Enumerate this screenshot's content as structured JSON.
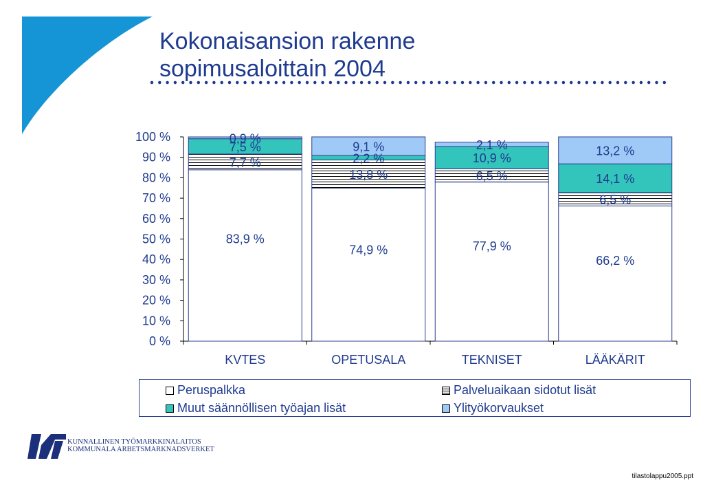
{
  "slide": {
    "title_line1": "Kokonaisansion rakenne",
    "title_line2": "sopimusaloittain 2004",
    "org_line1": "KUNNALLINEN TYÖMARKKINALAITOS",
    "org_line2": "KOMMUNALA ARBETSMARKNADSVERKET",
    "footer": "tilastolappu2005.ppt"
  },
  "colors": {
    "title": "#1f3b8f",
    "peruspalkka": "#ffffff",
    "palveluaika": "#ffffff",
    "muut": "#33c4bb",
    "ylityo": "#9fc9f6",
    "decor": "#1595d6"
  },
  "icons": {
    "logo": "kt-logo-icon"
  },
  "chart_data": {
    "type": "bar",
    "stacked": true,
    "categories": [
      "KVTES",
      "OPETUSALA",
      "TEKNISET",
      "LÄÄKÄRIT"
    ],
    "series": [
      {
        "name": "Peruspalkka",
        "values": [
          83.9,
          74.9,
          77.9,
          66.2
        ],
        "labels": [
          "83,9 %",
          "74,9 %",
          "77,9 %",
          "66,2 %"
        ]
      },
      {
        "name": "Palveluaikaan sidotut lisät",
        "values": [
          7.7,
          13.8,
          6.5,
          6.5
        ],
        "labels": [
          "7,7 %",
          "13,8 %",
          "6,5 %",
          "6,5 %"
        ]
      },
      {
        "name": "Muut säännöllisen työajan lisät",
        "values": [
          7.5,
          2.2,
          10.9,
          14.1
        ],
        "labels": [
          "7,5 %",
          "2,2 %",
          "10,9 %",
          "14,1 %"
        ]
      },
      {
        "name": "Ylityökorvaukset",
        "values": [
          0.9,
          9.1,
          2.1,
          13.2
        ],
        "labels": [
          "0,9 %",
          "9,1 %",
          "2,1 %",
          "13,2 %"
        ]
      }
    ],
    "ylim": [
      0,
      100
    ],
    "yticks": [
      "0 %",
      "10 %",
      "20 %",
      "30 %",
      "40 %",
      "50 %",
      "60 %",
      "70 %",
      "80 %",
      "90 %",
      "100 %"
    ],
    "legend": "bottom"
  }
}
